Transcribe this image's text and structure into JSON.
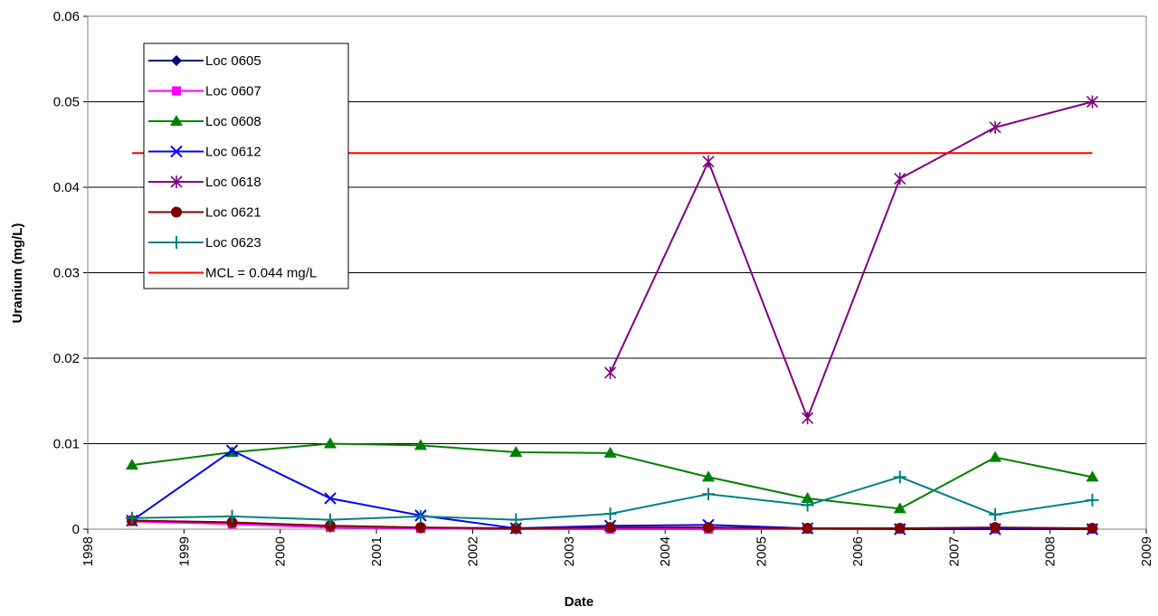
{
  "chart_data": {
    "type": "line",
    "x_label": "Date",
    "y_label": "Uranium (mg/L)",
    "x": [
      1998.46,
      1999.5,
      2000.52,
      2001.46,
      2002.45,
      2003.43,
      2004.45,
      2005.48,
      2006.44,
      2007.43,
      2008.44
    ],
    "xlim": [
      1998,
      2009
    ],
    "xticks": [
      1998,
      1999,
      2000,
      2001,
      2002,
      2003,
      2004,
      2005,
      2006,
      2007,
      2008,
      2009
    ],
    "ylim": [
      0,
      0.06
    ],
    "yticks": [
      0,
      0.01,
      0.02,
      0.03,
      0.04,
      0.05,
      0.06
    ],
    "grid": true,
    "legend": "upper left",
    "series": [
      {
        "name": "Loc 0605",
        "color": "#000080",
        "marker": "diamond",
        "values": [
          0.001,
          0.0007,
          0.0002,
          0.0001,
          0,
          0.0001,
          0.0001,
          0.0001,
          0.0001,
          0.0001,
          0.0001
        ]
      },
      {
        "name": "Loc 0607",
        "color": "#ff00ff",
        "marker": "square",
        "values": [
          0.0009,
          0.0006,
          0.0002,
          0.0001,
          0,
          0,
          0,
          0,
          0,
          0,
          0
        ]
      },
      {
        "name": "Loc 0608",
        "color": "#008000",
        "marker": "triangle",
        "values": [
          0.0075,
          0.009,
          0.01,
          0.0098,
          0.009,
          0.0089,
          0.0061,
          0.0036,
          0.0024,
          0.0084,
          0.0061
        ]
      },
      {
        "name": "Loc 0612",
        "color": "#0000ff",
        "marker": "x",
        "values": [
          0.001,
          0.0092,
          0.0036,
          0.0016,
          0.0001,
          0.0004,
          0.0005,
          0.0001,
          0,
          0,
          0
        ]
      },
      {
        "name": "Loc 0618",
        "color": "#800080",
        "marker": "asterisk",
        "values": [
          null,
          null,
          null,
          null,
          null,
          0.0183,
          0.043,
          0.013,
          0.041,
          0.047,
          0.05
        ]
      },
      {
        "name": "Loc 0621",
        "color": "#800000",
        "marker": "circle",
        "values": [
          0.001,
          0.0008,
          0.0004,
          0.0002,
          0.0001,
          0.0002,
          0.0002,
          0.0001,
          0.0001,
          0.0002,
          0.0001
        ]
      },
      {
        "name": "Loc 0623",
        "color": "#008080",
        "marker": "plus",
        "values": [
          0.0013,
          0.0015,
          0.0011,
          0.0015,
          0.0011,
          0.0018,
          0.0041,
          0.0028,
          0.0061,
          0.0017,
          0.0034
        ]
      },
      {
        "name": "MCL = 0.044 mg/L",
        "color": "#ff0000",
        "marker": "none",
        "values": [
          0.044,
          0.044,
          0.044,
          0.044,
          0.044,
          0.044,
          0.044,
          0.044,
          0.044,
          0.044,
          0.044
        ]
      }
    ]
  }
}
